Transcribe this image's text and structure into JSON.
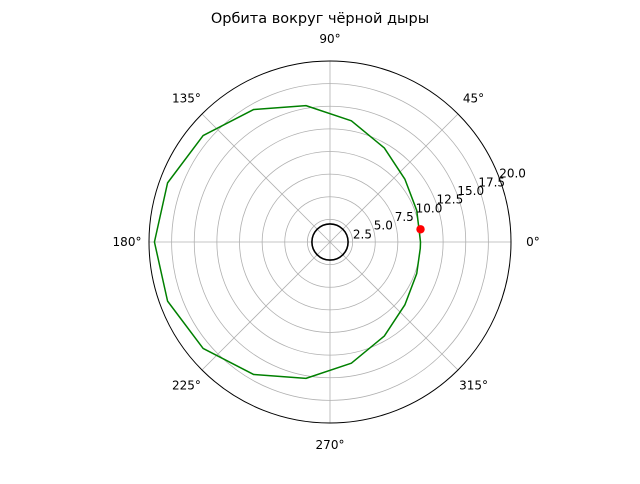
{
  "chart_data": {
    "type": "line",
    "projection": "polar",
    "title": "Орбита вокруг чёрной дыры",
    "theta_ticks": [
      {
        "deg": 0,
        "label": "0°"
      },
      {
        "deg": 45,
        "label": "45°"
      },
      {
        "deg": 90,
        "label": "90°"
      },
      {
        "deg": 135,
        "label": "135°"
      },
      {
        "deg": 180,
        "label": "180°"
      },
      {
        "deg": 225,
        "label": "225°"
      },
      {
        "deg": 270,
        "label": "270°"
      },
      {
        "deg": 315,
        "label": "315°"
      }
    ],
    "r_ticks": [
      {
        "value": 2.5,
        "label": "2.5"
      },
      {
        "value": 5.0,
        "label": "5.0"
      },
      {
        "value": 7.5,
        "label": "7.5"
      },
      {
        "value": 10.0,
        "label": "10.0"
      },
      {
        "value": 12.5,
        "label": "12.5"
      },
      {
        "value": 15.0,
        "label": "15.0"
      },
      {
        "value": 17.5,
        "label": "17.5"
      },
      {
        "value": 20.0,
        "label": "20.0"
      }
    ],
    "rlim": [
      0,
      20
    ],
    "grid": true,
    "series": [
      {
        "kind": "orbit",
        "color": "#008000",
        "points": [
          {
            "theta": 0,
            "r": 10.0
          },
          {
            "theta": 20,
            "r": 10.2
          },
          {
            "theta": 40,
            "r": 10.8
          },
          {
            "theta": 60,
            "r": 12.0
          },
          {
            "theta": 80,
            "r": 13.6
          },
          {
            "theta": 100,
            "r": 15.3
          },
          {
            "theta": 120,
            "r": 16.9
          },
          {
            "theta": 140,
            "r": 18.3
          },
          {
            "theta": 160,
            "r": 19.1
          },
          {
            "theta": 180,
            "r": 19.4
          },
          {
            "theta": 200,
            "r": 19.1
          },
          {
            "theta": 220,
            "r": 18.3
          },
          {
            "theta": 240,
            "r": 16.9
          },
          {
            "theta": 260,
            "r": 15.3
          },
          {
            "theta": 280,
            "r": 13.6
          },
          {
            "theta": 300,
            "r": 12.0
          },
          {
            "theta": 320,
            "r": 10.8
          },
          {
            "theta": 340,
            "r": 10.2
          },
          {
            "theta": 356,
            "r": 10.0
          }
        ]
      },
      {
        "kind": "event-horizon",
        "color": "#000000",
        "constant_r": 2.0
      },
      {
        "kind": "current-position",
        "color": "#ff0000",
        "points": [
          {
            "theta": 8,
            "r": 10.1
          }
        ]
      }
    ]
  }
}
